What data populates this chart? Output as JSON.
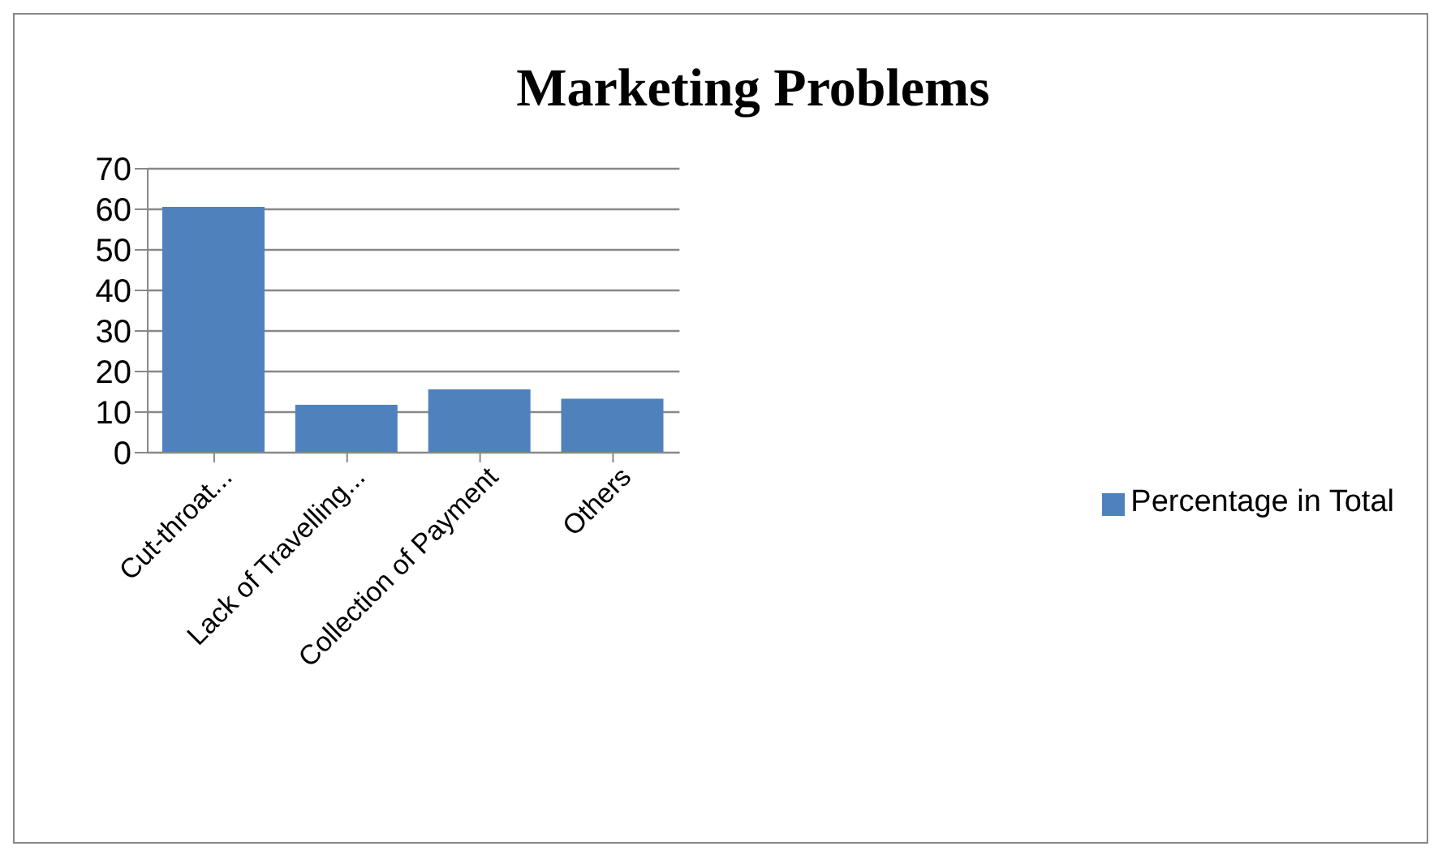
{
  "chart_data": {
    "type": "bar",
    "title": "Marketing Problems",
    "categories": [
      "Cut-throat...",
      "Lack of Travelling...",
      "Collection of Payment",
      "Others"
    ],
    "series": [
      {
        "name": "Percentage in Total",
        "color": "#4f81bd",
        "values": [
          60.6,
          11.8,
          15.6,
          13.3
        ]
      }
    ],
    "ylim": [
      0,
      70
    ],
    "yticks": [
      0,
      10,
      20,
      30,
      40,
      50,
      60,
      70
    ],
    "grid": "y",
    "legend": "right"
  }
}
